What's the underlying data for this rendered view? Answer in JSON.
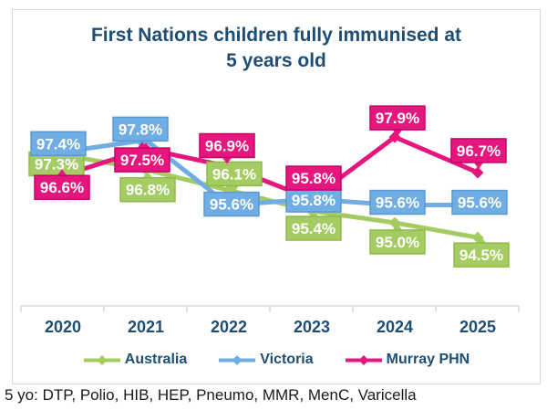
{
  "page": {
    "title_lines": [
      "First Nations children fully immunised at",
      "5 years old"
    ],
    "footnote": "5 yo: DTP, Polio, HIB, HEP, Pneumo, MMR, MenC, Varicella"
  },
  "colors": {
    "title_text": "#1d4e74",
    "axis_text": "#1d4e74",
    "legend_text": "#1d4e74",
    "axis_line": "#d9d9d9",
    "data_label_text": "#ffffff",
    "footnote_text": "#1a1a1a",
    "australia": "#a4cc62",
    "victoria": "#6fade4",
    "murray_phn": "#e5177f"
  },
  "chart_data": {
    "type": "line",
    "title": "First Nations children fully immunised at 5 years old",
    "categories": [
      "2020",
      "2021",
      "2022",
      "2023",
      "2024",
      "2025"
    ],
    "series": [
      {
        "name": "Australia",
        "color": "#a4cc62",
        "border_color": "#8fba47",
        "values": [
          97.3,
          96.8,
          96.1,
          95.4,
          95.0,
          94.5
        ],
        "label_offsets": [
          [
            -7,
            10,
            "none"
          ],
          [
            2,
            22,
            "up"
          ],
          [
            6,
            -18,
            "down"
          ],
          [
            2,
            19,
            "up"
          ],
          [
            3,
            21,
            "up"
          ],
          [
            4,
            19,
            "up"
          ]
        ]
      },
      {
        "name": "Victoria",
        "color": "#6fade4",
        "border_color": "#5a99d0",
        "values": [
          97.4,
          97.8,
          95.6,
          95.8,
          95.6,
          95.6
        ],
        "label_offsets": [
          [
            -5,
            -9,
            "none"
          ],
          [
            -6,
            -12,
            "down"
          ],
          [
            3,
            -1,
            "none"
          ],
          [
            2,
            1,
            "none"
          ],
          [
            3,
            -3,
            "none"
          ],
          [
            2,
            -3,
            "none"
          ]
        ]
      },
      {
        "name": "Murray PHN",
        "color": "#e5177f",
        "border_color": "#c7006a",
        "values": [
          96.6,
          97.5,
          96.9,
          95.8,
          97.9,
          96.7
        ],
        "label_offsets": [
          [
            -1,
            13,
            "up"
          ],
          [
            -4,
            12,
            "up"
          ],
          [
            -2,
            -23,
            "down"
          ],
          [
            2,
            -23,
            "none"
          ],
          [
            3,
            -21,
            "down"
          ],
          [
            1,
            -24,
            "down"
          ]
        ]
      }
    ],
    "value_suffix": "%",
    "value_decimals": 1,
    "data_labels": true,
    "grid": false,
    "y_axis_visible": false,
    "ylim": [
      92,
      99
    ],
    "legend_position": "bottom"
  }
}
